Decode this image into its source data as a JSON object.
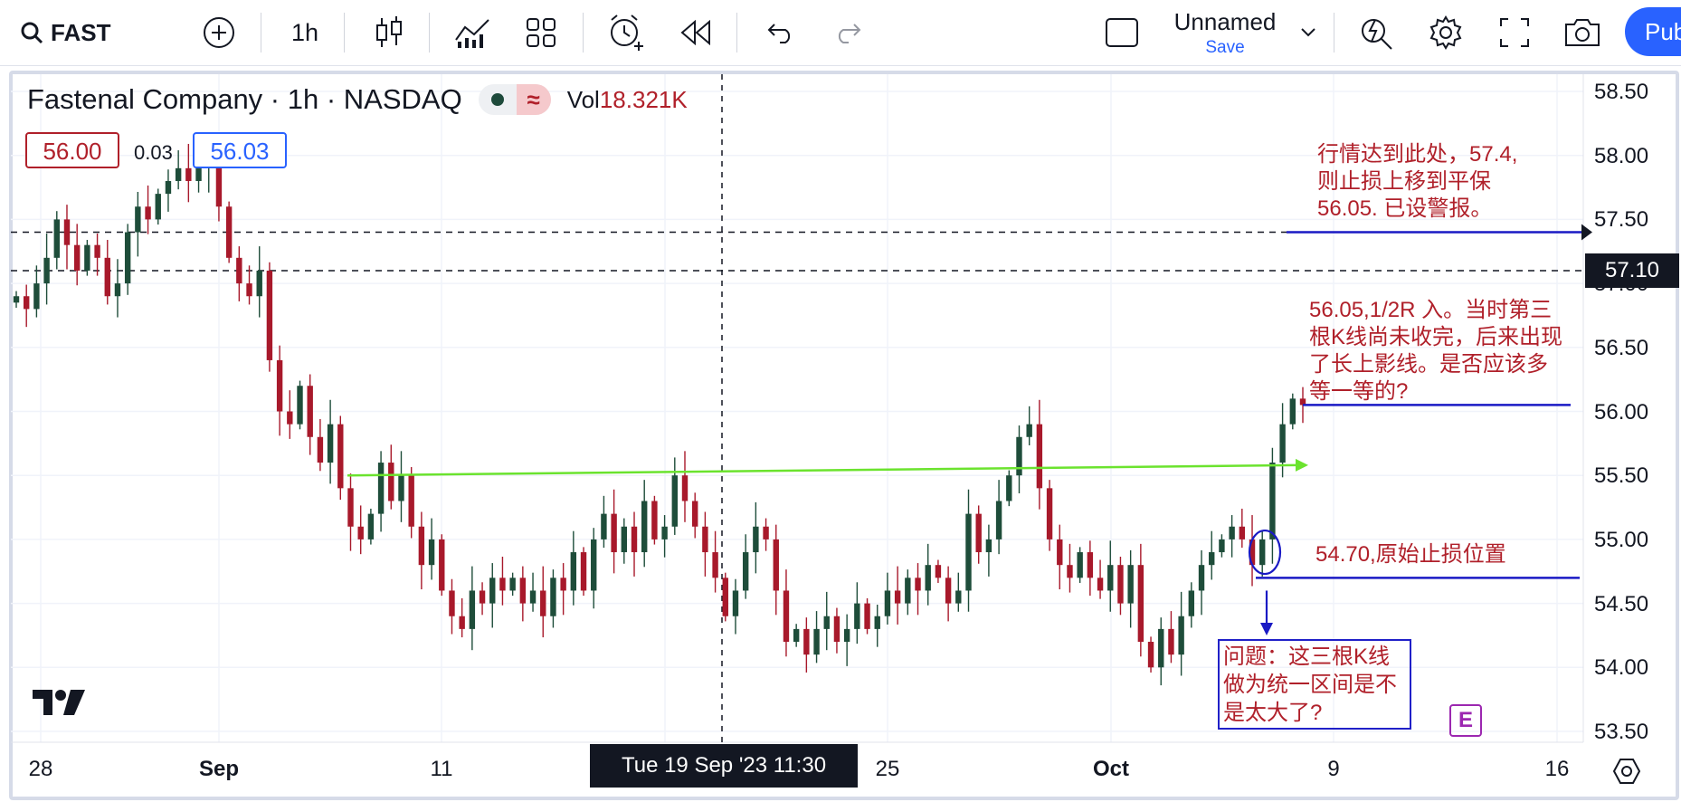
{
  "toolbar": {
    "symbol": "FAST",
    "interval": "1h",
    "layout_name": "Unnamed",
    "save_label": "Save",
    "publish_label": "Publ"
  },
  "legend": {
    "title": "Fastenal Company · 1h · NASDAQ",
    "vol_label": "Vol",
    "vol_value": "18.321K",
    "bid": "56.00",
    "spread": "0.03",
    "ask": "56.03"
  },
  "y_axis": {
    "ticks": [
      "58.50",
      "58.00",
      "57.50",
      "57.00",
      "56.50",
      "56.00",
      "55.50",
      "55.00",
      "54.50",
      "54.00",
      "53.50"
    ],
    "tick_values": [
      58.5,
      58.0,
      57.5,
      57.0,
      56.5,
      56.0,
      55.5,
      55.0,
      54.5,
      54.0,
      53.5
    ],
    "current_price_label": "57.10"
  },
  "x_axis": {
    "labels": [
      "28",
      "Sep",
      "11",
      "",
      "25",
      "Oct",
      "9",
      "16"
    ],
    "crosshair_date": "Tue 19 Sep '23   11:30"
  },
  "annotations": {
    "stop_move": [
      "行情达到此处，57.4,",
      "则止损上移到平保",
      "56.05. 已设警报。"
    ],
    "entry": [
      "56.05,1/2R 入。当时第三",
      "根K线尚未收完，后来出现",
      "了长上影线。是否应该多",
      "等一等的?"
    ],
    "stop": "54.70,原始止损位置",
    "question": [
      "问题：这三根K线",
      "做为统一区间是不",
      "是太大了?"
    ]
  },
  "earnings_badge": "E",
  "colors": {
    "up": "#1e4d3a",
    "down": "#a8192b",
    "accent": "#2962ff",
    "trendline": "#6be32e",
    "level_line": "#1a1ac4",
    "annotation_text": "#b0202a"
  },
  "chart_data": {
    "type": "candlestick",
    "symbol": "FAST",
    "interval": "1h",
    "ylim": [
      53.4,
      58.6
    ],
    "levels": [
      57.4,
      57.1,
      56.05,
      54.7
    ],
    "trendline": {
      "from": 55.5,
      "to": 55.58
    },
    "closes": [
      56.9,
      56.8,
      57.0,
      57.2,
      57.5,
      57.3,
      57.1,
      57.3,
      57.2,
      56.9,
      57.0,
      57.4,
      57.6,
      57.5,
      57.7,
      57.8,
      57.9,
      57.8,
      57.9,
      58.0,
      57.6,
      57.2,
      57.0,
      56.9,
      57.1,
      56.4,
      56.0,
      55.9,
      56.2,
      55.8,
      55.6,
      55.9,
      55.4,
      55.1,
      55.0,
      55.2,
      55.6,
      55.3,
      55.5,
      55.1,
      54.8,
      55.0,
      54.6,
      54.4,
      54.3,
      54.6,
      54.5,
      54.7,
      54.6,
      54.7,
      54.5,
      54.6,
      54.4,
      54.7,
      54.6,
      54.9,
      54.6,
      55.0,
      55.2,
      54.9,
      55.1,
      54.9,
      55.3,
      55.0,
      55.1,
      55.5,
      55.3,
      55.1,
      54.9,
      54.7,
      54.4,
      54.6,
      54.9,
      55.1,
      55.0,
      54.6,
      54.2,
      54.3,
      54.1,
      54.3,
      54.4,
      54.2,
      54.3,
      54.5,
      54.3,
      54.4,
      54.6,
      54.5,
      54.7,
      54.6,
      54.8,
      54.7,
      54.5,
      54.6,
      55.2,
      54.9,
      55.0,
      55.3,
      55.5,
      55.8,
      55.9,
      55.4,
      55.0,
      54.8,
      54.7,
      54.9,
      54.7,
      54.6,
      54.8,
      54.5,
      54.8,
      54.2,
      54.0,
      54.3,
      54.1,
      54.4,
      54.6,
      54.8,
      54.9,
      55.0,
      55.1,
      55.0,
      54.8,
      55.0,
      55.6,
      55.9,
      56.1,
      56.05
    ]
  }
}
